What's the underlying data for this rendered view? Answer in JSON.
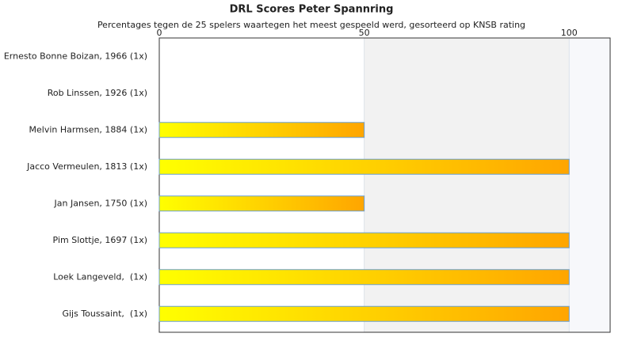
{
  "chart_data": {
    "type": "bar",
    "orientation": "horizontal",
    "title": "DRL Scores Peter Spannring",
    "subtitle": "Percentages tegen de 25 spelers waartegen het meest gespeeld werd, gesorteerd op KNSB rating",
    "categories": [
      "Ernesto Bonne Boizan, 1966 (1x)",
      "Rob Linssen, 1926 (1x)",
      "Melvin Harmsen, 1884 (1x)",
      "Jacco Vermeulen, 1813 (1x)",
      "Jan Jansen, 1750 (1x)",
      "Pim Slottje, 1697 (1x)",
      "Loek Langeveld,  (1x)",
      "Gijs Toussaint,  (1x)"
    ],
    "values": [
      0,
      0,
      50,
      100,
      50,
      100,
      100,
      100
    ],
    "colors": [
      "#ffff00",
      "#ffa500"
    ],
    "border_color": "#6a9fd0",
    "xlim": [
      0,
      110
    ],
    "xticks": [
      0,
      50,
      100
    ]
  }
}
